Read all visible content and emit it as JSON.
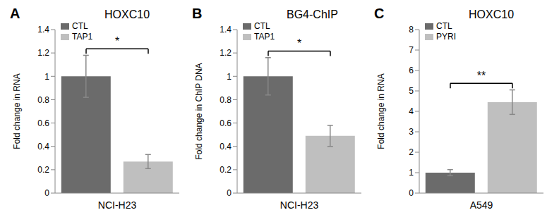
{
  "chart_data": [
    {
      "type": "bar",
      "panel_label": "A",
      "title": "HOXC10",
      "y_label": "Fold change in RNA",
      "categories": [
        "NCI-H23"
      ],
      "series": [
        {
          "name": "CTL",
          "color": "#6b6b6b",
          "values": [
            1.0
          ],
          "errors": [
            0.18
          ]
        },
        {
          "name": "TAP1",
          "color": "#bfbfbf",
          "values": [
            0.27
          ],
          "errors": [
            0.06
          ]
        }
      ],
      "ylim": [
        0,
        1.4
      ],
      "yticks": [
        0,
        0.2,
        0.4,
        0.6,
        0.8,
        1,
        1.2,
        1.4
      ],
      "annotations": [
        "*"
      ],
      "grid": false,
      "legend": "upper left"
    },
    {
      "type": "bar",
      "panel_label": "B",
      "title": "BG4-ChIP",
      "y_label": "Fold change in ChIP DNA",
      "categories": [
        "NCI-H23"
      ],
      "series": [
        {
          "name": "CTL",
          "color": "#6b6b6b",
          "values": [
            1.0
          ],
          "errors": [
            0.16
          ]
        },
        {
          "name": "TAP1",
          "color": "#bfbfbf",
          "values": [
            0.49
          ],
          "errors": [
            0.09
          ]
        }
      ],
      "ylim": [
        0,
        1.4
      ],
      "yticks": [
        0,
        0.2,
        0.4,
        0.6,
        0.8,
        1,
        1.2,
        1.4
      ],
      "annotations": [
        "*"
      ],
      "grid": false,
      "legend": "upper left"
    },
    {
      "type": "bar",
      "panel_label": "C",
      "title": "HOXC10",
      "y_label": "Fold change in RNA",
      "categories": [
        "A549"
      ],
      "series": [
        {
          "name": "CTL",
          "color": "#6b6b6b",
          "values": [
            1.0
          ],
          "errors": [
            0.15
          ]
        },
        {
          "name": "PYRI",
          "color": "#bfbfbf",
          "values": [
            4.45
          ],
          "errors": [
            0.6
          ]
        }
      ],
      "ylim": [
        0,
        8
      ],
      "yticks": [
        0,
        1,
        2,
        3,
        4,
        5,
        6,
        7,
        8
      ],
      "annotations": [
        "**"
      ],
      "grid": false,
      "legend": "upper left"
    }
  ]
}
